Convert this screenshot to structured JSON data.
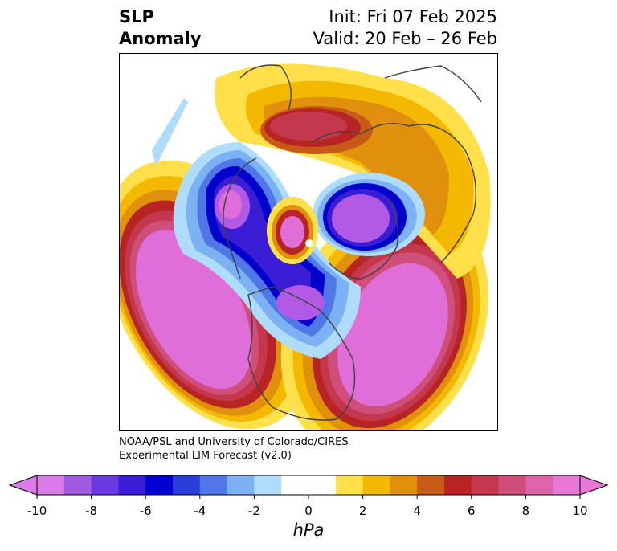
{
  "title": {
    "left_line1": "SLP",
    "left_line2": "Anomaly",
    "right_line1": "Init: Fri 07 Feb 2025",
    "right_line2": "Valid: 20 Feb – 26 Feb"
  },
  "credit": {
    "line1": "NOAA/PSL and University of Colorado/CIRES",
    "line2": "Experimental LIM Forecast (v2.0)"
  },
  "colorbar": {
    "units": "hPa",
    "ticks": [
      "-10",
      "-8",
      "-6",
      "-4",
      "-2",
      "0",
      "2",
      "4",
      "6",
      "8",
      "10"
    ],
    "colors": [
      "#d97be8",
      "#a05ae0",
      "#6b3adf",
      "#3c1ed8",
      "#0000d0",
      "#2a3fd8",
      "#4f77e8",
      "#7cb2f4",
      "#aedcfa",
      "#ffffff",
      "#ffffff",
      "#ffe04a",
      "#f4b800",
      "#e0900c",
      "#c85a18",
      "#b82424",
      "#c4384e",
      "#d04e7a",
      "#dc64a8",
      "#e878d6"
    ],
    "under_color": "#d97be8",
    "over_color": "#e878d6"
  },
  "map_colors": {
    "neg_10": "#e06ed8",
    "neg_8": "#b25ae6",
    "neg_6": "#3b1dd6",
    "neg_4": "#0000cc",
    "neg_3": "#4f77e8",
    "neg_2": "#7cb2f4",
    "neg_1": "#aedcfa",
    "pos_1": "#ffe04a",
    "pos_2": "#f4b800",
    "pos_4": "#e0900c",
    "pos_5": "#c85a18",
    "pos_6": "#b82424",
    "pos_7": "#c4384e",
    "pos_8": "#d04e7a",
    "pos_10": "#e06ed8",
    "coast": "#404040"
  }
}
